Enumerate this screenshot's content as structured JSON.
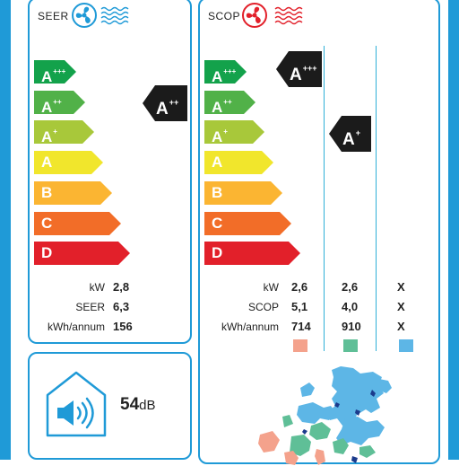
{
  "seer": {
    "title": "SEER",
    "classes": [
      {
        "label": "A",
        "sup": "+++",
        "color": "#13a24b"
      },
      {
        "label": "A",
        "sup": "++",
        "color": "#51b148"
      },
      {
        "label": "A",
        "sup": "+",
        "color": "#a8c83a"
      },
      {
        "label": "A",
        "sup": "",
        "color": "#f1e62c"
      },
      {
        "label": "B",
        "sup": "",
        "color": "#fbb532"
      },
      {
        "label": "C",
        "sup": "",
        "color": "#f26d28"
      },
      {
        "label": "D",
        "sup": "",
        "color": "#e2202a"
      }
    ],
    "rating": {
      "label": "A",
      "sup": "++"
    },
    "rows": [
      {
        "label": "kW",
        "value": "2,8"
      },
      {
        "label": "SEER",
        "value": "6,3"
      },
      {
        "label": "kWh/annum",
        "value": "156"
      }
    ]
  },
  "scop": {
    "title": "SCOP",
    "ratings": [
      {
        "label": "A",
        "sup": "+++"
      },
      {
        "label": "A",
        "sup": "+"
      }
    ],
    "rows": [
      {
        "label": "kW",
        "values": [
          "2,6",
          "2,6",
          "X"
        ]
      },
      {
        "label": "SCOP",
        "values": [
          "5,1",
          "4,0",
          "X"
        ]
      },
      {
        "label": "kWh/annum",
        "values": [
          "714",
          "910",
          "X"
        ]
      }
    ],
    "zones": [
      {
        "name": "warm",
        "color": "#f4a28c"
      },
      {
        "name": "average",
        "color": "#5fbf97"
      },
      {
        "name": "cold",
        "color": "#5db6e6"
      }
    ]
  },
  "noise": {
    "value": "54",
    "unit": "dB"
  },
  "icons": {
    "seer": "fan-cooling-icon",
    "scop": "fan-heating-icon",
    "noise": "house-speaker-icon",
    "map": "europe-climate-map-icon"
  },
  "colors": {
    "border": "#1f9ad7",
    "dark": "#1b1b1b",
    "cool": "#1f9ad7",
    "heat": "#e2202a"
  }
}
